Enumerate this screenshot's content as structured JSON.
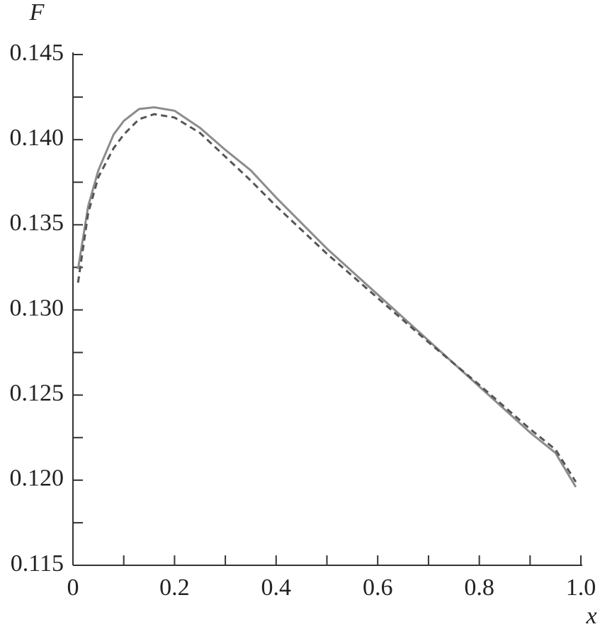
{
  "chart_data": {
    "type": "line",
    "y_label": "F",
    "x_label": "x",
    "xlim": [
      0,
      1
    ],
    "ylim": [
      0.115,
      0.145
    ],
    "xticks": [
      0,
      0.2,
      0.4,
      0.6,
      {
        "value": 1,
        "label": "1.0"
      },
      0.8
    ],
    "xminorticks": [
      0.1,
      0.3,
      0.5,
      0.7,
      0.9
    ],
    "yticks": [
      0.115,
      {
        "value": 0.12,
        "label": "0.120"
      },
      0.125,
      {
        "value": 0.13,
        "label": "0.130"
      },
      0.135,
      {
        "value": 0.14,
        "label": "0.140"
      },
      0.145
    ],
    "yminorticks": [
      0.1175,
      0.1225,
      0.1275,
      0.1325,
      0.1375,
      0.1425
    ],
    "x": [
      0.01,
      0.03,
      0.05,
      0.08,
      0.1,
      0.13,
      0.16,
      0.2,
      0.25,
      0.3,
      0.35,
      0.4,
      0.5,
      0.6,
      0.7,
      0.8,
      0.9,
      0.95,
      0.99
    ],
    "series": [
      {
        "color": "#8c8c8c",
        "dash": false,
        "values": [
          0.1324,
          0.1361,
          0.1382,
          0.1403,
          0.1411,
          0.1418,
          0.1419,
          0.1417,
          0.1407,
          0.1394,
          0.1382,
          0.1366,
          0.1336,
          0.1309,
          0.1282,
          0.1255,
          0.1228,
          0.1216,
          0.1196
        ]
      },
      {
        "color": "#555555",
        "dash": true,
        "values": [
          0.1316,
          0.1357,
          0.1378,
          0.1395,
          0.1403,
          0.1412,
          0.1415,
          0.1413,
          0.1404,
          0.139,
          0.1376,
          0.1361,
          0.1333,
          0.1307,
          0.1281,
          0.1256,
          0.123,
          0.1218,
          0.1199
        ]
      }
    ]
  }
}
